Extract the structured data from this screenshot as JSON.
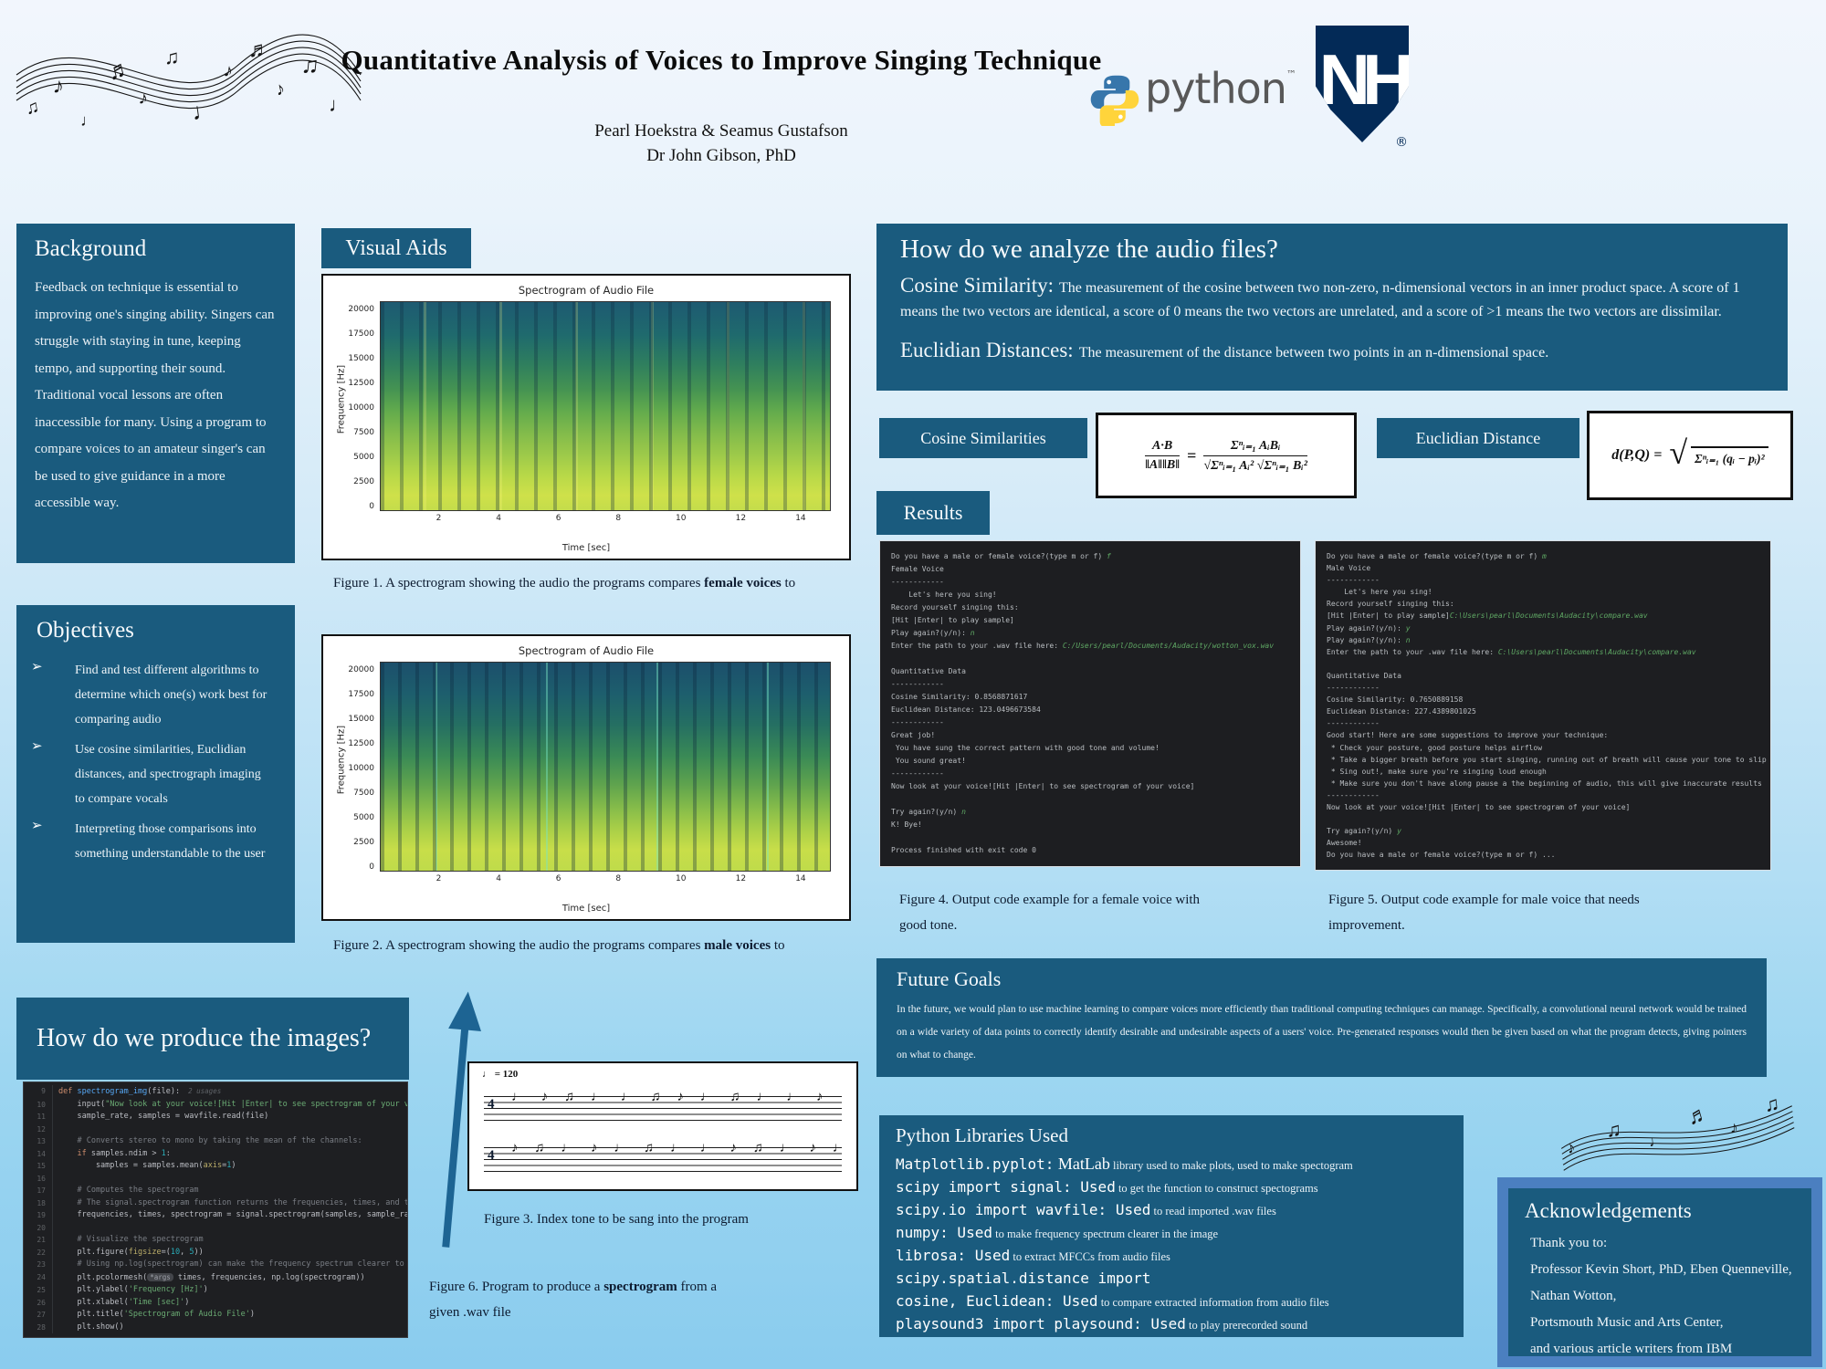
{
  "header": {
    "title": "Quantitative Analysis of Voices to Improve Singing Technique",
    "authors": "Pearl Hoekstra & Seamus Gustafson",
    "advisor": "Dr John Gibson, PhD",
    "python_wordmark": "python",
    "python_tm": "™",
    "unh_letters": "NH",
    "unh_reg": "®"
  },
  "colors": {
    "panel_teal": "#1a5b7e",
    "terminal_bg": "#1d1e21",
    "terminal_green": "#5fa864",
    "arrow_blue": "#1d6493",
    "python_blue": "#3776ab",
    "python_yellow": "#ffd43b",
    "unh_navy": "#032a57",
    "ack_border_blue": "#4b7fc0"
  },
  "left": {
    "background": {
      "heading": "Background",
      "body": "Feedback on technique is essential to improving one's singing ability. Singers can struggle with staying in tune, keeping tempo, and supporting their sound. Traditional vocal lessons are often inaccessible for many. Using a program to compare voices to an amateur singer's can be used to give guidance in a more accessible way."
    },
    "objectives": {
      "heading": "Objectives",
      "bullet_glyph": "➢",
      "items": [
        "Find and test different algorithms to determine which one(s) work best for comparing audio",
        "Use cosine similarities, Euclidian distances, and spectrograph imaging to compare vocals",
        "Interpreting those comparisons into something understandable to the user"
      ]
    },
    "produce_heading": "How do we produce the images?",
    "code": {
      "start_line": 9,
      "lines": [
        [
          [
            "def ",
            "k"
          ],
          [
            "spectrogram_img",
            "fn"
          ],
          [
            "(file):",
            "d"
          ],
          [
            "  2 usages",
            "h1"
          ]
        ],
        [
          [
            "    input(",
            "d"
          ],
          [
            "\"Now look at your voice![Hit |Enter| to see spectrogram of your voice]\"",
            "s"
          ],
          [
            ")",
            "d"
          ]
        ],
        [
          [
            "    sample_rate, samples = wavfile.read(file)",
            "d"
          ]
        ],
        [],
        [
          [
            "    # Converts stereo to mono by taking the mean of the channels:",
            "c"
          ]
        ],
        [
          [
            "    ",
            "d"
          ],
          [
            "if",
            "k"
          ],
          [
            " samples.ndim > ",
            "d"
          ],
          [
            "1",
            "n"
          ],
          [
            ":",
            "d"
          ]
        ],
        [
          [
            "        samples = samples.mean(",
            "d"
          ],
          [
            "axis",
            "p"
          ],
          [
            "=",
            "d"
          ],
          [
            "1",
            "n"
          ],
          [
            ")",
            "d"
          ]
        ],
        [],
        [
          [
            "    # Computes the spectrogram",
            "c"
          ]
        ],
        [
          [
            "    # The signal.spectrogram function returns the frequencies, times, and the power spectrogram",
            "c"
          ]
        ],
        [
          [
            "    frequencies, times, spectrogram = signal.spectrogram(samples, sample_rate)",
            "d"
          ]
        ],
        [],
        [
          [
            "    # Visualize the spectrogram",
            "c"
          ]
        ],
        [
          [
            "    plt.figure(",
            "d"
          ],
          [
            "figsize",
            "p"
          ],
          [
            "=(",
            "d"
          ],
          [
            "10",
            "n"
          ],
          [
            ", ",
            "d"
          ],
          [
            "5",
            "n"
          ],
          [
            "))",
            "d"
          ]
        ],
        [
          [
            "    # Using np.log(spectrogram) can make the frequency spectrum clearer to see.",
            "c"
          ]
        ],
        [
          [
            "    plt.pcolormesh(",
            "d"
          ],
          [
            "*args",
            "h2"
          ],
          [
            " times, frequencies, np.log(spectrogram))",
            "d"
          ]
        ],
        [
          [
            "    plt.ylabel(",
            "d"
          ],
          [
            "'Frequency [Hz]'",
            "s"
          ],
          [
            ")",
            "d"
          ]
        ],
        [
          [
            "    plt.xlabel(",
            "d"
          ],
          [
            "'Time [sec]'",
            "s"
          ],
          [
            ")",
            "d"
          ]
        ],
        [
          [
            "    plt.title(",
            "d"
          ],
          [
            "'Spectrogram of Audio File'",
            "s"
          ],
          [
            ")",
            "d"
          ]
        ],
        [
          [
            "    plt.show()",
            "d"
          ]
        ]
      ]
    }
  },
  "visual_aids_heading": "Visual Aids",
  "spectrogram": {
    "title": "Spectrogram of Audio File",
    "ylabel": "Frequency [Hz]",
    "xlabel": "Time [sec]",
    "yticks": [
      "20000",
      "17500",
      "15000",
      "12500",
      "10000",
      "7500",
      "5000",
      "2500",
      "0"
    ],
    "xticks": [
      "2",
      "4",
      "6",
      "8",
      "10",
      "12",
      "14"
    ]
  },
  "sheet_music": {
    "tempo_note": "♩",
    "tempo": "= 120",
    "time_sig": "4",
    "notes_line1": "♩ ♪ ♫ ♩ ♩ ♫ ♪ ♩ ♫ ♩ ♩ ♪ ♫ ♩",
    "notes_line2": "♪ ♫ ♩ ♪ ♩ ♫ ♩ ♩ ♪ ♫ ♩ ♪ ♩ ♫"
  },
  "captions": {
    "fig1": {
      "prefix": "Figure 1.  A spectrogram showing the audio the programs compares ",
      "bold": "female voices",
      "suffix": " to"
    },
    "fig2": {
      "prefix": "Figure 2.  A spectrogram showing the audio the programs compares ",
      "bold": "male voices",
      "suffix": " to"
    },
    "fig3": {
      "prefix": "Figure 3.  Index tone to be sang into the program",
      "bold": "",
      "suffix": ""
    },
    "fig4": {
      "line1": "Figure 4.  Output code example for a female voice with",
      "line2": "good tone."
    },
    "fig5": {
      "line1": "Figure 5.  Output code example for male voice that needs",
      "line2": "improvement."
    },
    "fig6": {
      "prefix": "Figure 6.  Program to produce a ",
      "bold": "spectrogram",
      "suffix": " from a given .wav file"
    }
  },
  "analyze": {
    "heading": "How do we analyze the audio files?",
    "cosine_term": "Cosine Similarity:",
    "cosine_def": "The measurement of the cosine between two non-zero, n-dimensional vectors in an inner product space. A score of 1 means the two vectors are identical, a score of 0 means the two vectors are unrelated, and a score of >1 means the two vectors are dissimilar.",
    "euclid_term": "Euclidian Distances:",
    "euclid_def": "The measurement of the distance between two points in an n-dimensional space."
  },
  "formulas": {
    "cosine_label": "Cosine Similarities",
    "euclid_label": "Euclidian Distance",
    "eq": "=",
    "cos_lhs_num": "A·B",
    "cos_lhs_den": "‖A‖‖B‖",
    "cos_rhs_num": "Σⁿᵢ₌₁ AᵢBᵢ",
    "cos_rhs_den": "√Σⁿᵢ₌₁ Aᵢ² √Σⁿᵢ₌₁ Bᵢ²",
    "euc_lhs": "d(P,Q) =",
    "euc_root": "√",
    "euc_radicand": "Σⁿᵢ₌₁ (qᵢ − pᵢ)²"
  },
  "results_heading": "Results",
  "terminal_female": {
    "lines": [
      [
        [
          "Do you have a male or female voice?(type m or f) ",
          "w"
        ],
        [
          "f",
          "gi"
        ]
      ],
      [
        [
          "Female Voice",
          "w"
        ]
      ],
      [
        [
          "------------",
          "w"
        ]
      ],
      [
        [
          "    Let's here you sing!",
          "w"
        ]
      ],
      [
        [
          "Record yourself singing this:",
          "w"
        ]
      ],
      [
        [
          "[Hit |Enter| to play sample]",
          "w"
        ]
      ],
      [
        [
          "Play again?(y/n): ",
          "w"
        ],
        [
          "n",
          "gi"
        ]
      ],
      [
        [
          "Enter the path to your .wav file here: ",
          "w"
        ],
        [
          "C:/Users/pearl/Documents/Audacity/wotton_vox.wav",
          "gi"
        ]
      ],
      [],
      [
        [
          "Quantitative Data",
          "w"
        ]
      ],
      [
        [
          "------------",
          "w"
        ]
      ],
      [
        [
          "Cosine Similarity: 0.8568871617",
          "w"
        ]
      ],
      [
        [
          "Euclidean Distance: 123.0496673584",
          "w"
        ]
      ],
      [
        [
          "------------",
          "w"
        ]
      ],
      [
        [
          "Great job!",
          "w"
        ]
      ],
      [
        [
          " You have sung the correct pattern with good tone and volume!",
          "w"
        ]
      ],
      [
        [
          " You sound great!",
          "w"
        ]
      ],
      [
        [
          "------------",
          "w"
        ]
      ],
      [
        [
          "Now look at your voice![Hit |Enter| to see spectrogram of your voice]",
          "w"
        ]
      ],
      [],
      [
        [
          "Try again?(y/n) ",
          "w"
        ],
        [
          "n",
          "gi"
        ]
      ],
      [
        [
          "K! Bye!",
          "w"
        ]
      ],
      [],
      [
        [
          "Process finished with exit code 0",
          "w"
        ]
      ]
    ]
  },
  "terminal_male": {
    "lines": [
      [
        [
          "Do you have a male or female voice?(type m or f) ",
          "w"
        ],
        [
          "m",
          "gi"
        ]
      ],
      [
        [
          "Male Voice",
          "w"
        ]
      ],
      [
        [
          "------------",
          "w"
        ]
      ],
      [
        [
          "    Let's here you sing!",
          "w"
        ]
      ],
      [
        [
          "Record yourself singing this:",
          "w"
        ]
      ],
      [
        [
          "[Hit |Enter| to play sample]",
          "w"
        ],
        [
          "C:\\Users\\pearl\\Documents\\Audacity\\compare.wav",
          "gi"
        ]
      ],
      [
        [
          "Play again?(y/n): ",
          "w"
        ],
        [
          "y",
          "gi"
        ]
      ],
      [
        [
          "Play again?(y/n): ",
          "w"
        ],
        [
          "n",
          "gi"
        ]
      ],
      [
        [
          "Enter the path to your .wav file here: ",
          "w"
        ],
        [
          "C:\\Users\\pearl\\Documents\\Audacity\\compare.wav",
          "gi"
        ]
      ],
      [],
      [
        [
          "Quantitative Data",
          "w"
        ]
      ],
      [
        [
          "------------",
          "w"
        ]
      ],
      [
        [
          "Cosine Similarity: 0.7650889158",
          "w"
        ]
      ],
      [
        [
          "Euclidean Distance: 227.4389801025",
          "w"
        ]
      ],
      [
        [
          "------------",
          "w"
        ]
      ],
      [
        [
          "Good start! Here are some suggestions to improve your technique:",
          "w"
        ]
      ],
      [
        [
          " * Check your posture, good posture helps airflow",
          "w"
        ]
      ],
      [
        [
          " * Take a bigger breath before you start singing, running out of breath will cause your tone to slip",
          "w"
        ]
      ],
      [
        [
          " * Sing out!, make sure you're singing loud enough",
          "w"
        ]
      ],
      [
        [
          " * Make sure you don't have along pause a the beginning of audio, this will give inaccurate results",
          "w"
        ]
      ],
      [
        [
          "------------",
          "w"
        ]
      ],
      [
        [
          "Now look at your voice![Hit |Enter| to see spectrogram of your voice]",
          "w"
        ]
      ],
      [],
      [
        [
          "Try again?(y/n) ",
          "w"
        ],
        [
          "y",
          "gi"
        ]
      ],
      [
        [
          "Awesome!",
          "w"
        ]
      ],
      [
        [
          "Do you have a male or female voice?(type m or f) ...",
          "w"
        ]
      ]
    ]
  },
  "future": {
    "heading": "Future Goals",
    "body": "In the future, we would plan to use machine learning to compare voices more efficiently than traditional computing techniques can manage. Specifically,  a convolutional neural network would be trained on a wide variety of data points to correctly identify desirable and undesirable aspects of a users' voice. Pre-generated responses would then be given based on what the program detects, giving pointers on what to change."
  },
  "libraries": {
    "heading": "Python Libraries Used",
    "items": [
      {
        "code": "Matplotlib.pyplot:",
        "used": "MatLab",
        "desc": "library used to make plots, used to make spectogram"
      },
      {
        "code": "scipy import signal:",
        "used": "Used",
        "desc": "to get the function to construct spectograms"
      },
      {
        "code": "scipy.io import wavfile:",
        "used": "Used",
        "desc": "to read imported .wav files"
      },
      {
        "code": "numpy:",
        "used": "Used",
        "desc": "to make frequency spectrum clearer in the image"
      },
      {
        "code": "librosa:",
        "used": "Used",
        "desc": "to extract MFCCs from audio files"
      },
      {
        "code": "scipy.spatial.distance import",
        "used": "",
        "desc": ""
      },
      {
        "code": "cosine, Euclidean:",
        "used": "Used",
        "desc": "to compare extracted information from audio files"
      },
      {
        "code": "playsound3 import playsound:",
        "used": "Used",
        "desc": "to play prerecorded sound"
      }
    ]
  },
  "acknowledgements": {
    "heading": "Acknowledgements",
    "lines": [
      "Thank you to:",
      "Professor Kevin Short, PhD,  Eben Quenneville,",
      "Nathan Wotton,",
      "Portsmouth Music and Arts Center,",
      " and various article writers from IBM"
    ]
  },
  "decorations": {
    "notes_large": [
      "♫",
      "♪",
      "♩",
      "♬",
      "♪",
      "♫",
      "♩",
      "♪",
      "♬",
      "♪",
      "♫",
      "♩"
    ],
    "notes_small": [
      "♪",
      "♫",
      "♩",
      "♬",
      "♪",
      "♫"
    ]
  }
}
